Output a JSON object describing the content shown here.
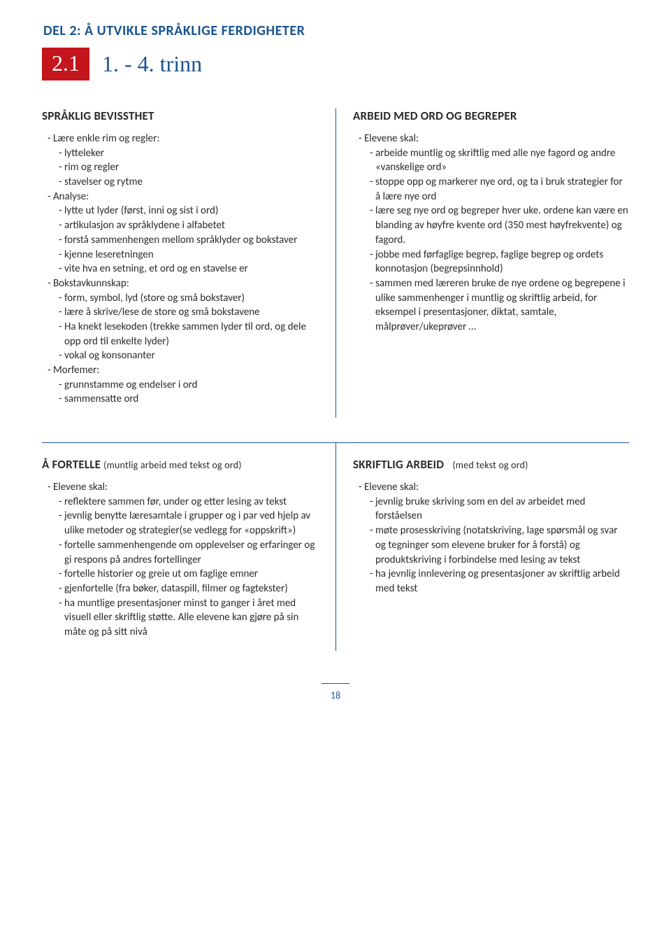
{
  "header": {
    "title": "DEL 2: Å UTVIKLE SPRÅKLIGE FERDIGHETER",
    "section_number": "2.1",
    "section_title": "1. - 4. trinn"
  },
  "blocks": {
    "spraklig": {
      "title": "SPRÅKLIG BEVISSTHET",
      "lines": [
        {
          "t": "- Lære enkle rim og regler:",
          "lvl": 1
        },
        {
          "t": "- lytteleker",
          "lvl": 2
        },
        {
          "t": "- rim og regler",
          "lvl": 2
        },
        {
          "t": "- stavelser og rytme",
          "lvl": 2
        },
        {
          "t": "- Analyse:",
          "lvl": 1
        },
        {
          "t": "- lytte ut lyder (først, inni og sist i ord)",
          "lvl": 2
        },
        {
          "t": "- artikulasjon av språklydene i alfabetet",
          "lvl": 2
        },
        {
          "t": "- forstå sammenhengen mellom språklyder og bokstaver",
          "lvl": 2
        },
        {
          "t": "- kjenne leseretningen",
          "lvl": 2
        },
        {
          "t": "- vite hva en setning, et ord og en stavelse er",
          "lvl": 2
        },
        {
          "t": "- Bokstavkunnskap:",
          "lvl": 1
        },
        {
          "t": "- form, symbol, lyd (store og små bokstaver)",
          "lvl": 2
        },
        {
          "t": "- lære å skrive/lese de store og små bokstavene",
          "lvl": 2
        },
        {
          "t": "- Ha knekt lesekoden (trekke sammen lyder til ord, og dele opp ord til enkelte lyder)",
          "lvl": 2
        },
        {
          "t": "- vokal og konsonanter",
          "lvl": 2
        },
        {
          "t": "- Morfemer:",
          "lvl": 1
        },
        {
          "t": "- grunnstamme og endelser i ord",
          "lvl": 2
        },
        {
          "t": "- sammensatte ord",
          "lvl": 2
        }
      ]
    },
    "arbeid": {
      "title": "ARBEID MED ORD OG BEGREPER",
      "lines": [
        {
          "t": "- Elevene skal:",
          "lvl": 1
        },
        {
          "t": "- arbeide muntlig og skriftlig med alle nye fagord og andre «vanskelige ord»",
          "lvl": 2
        },
        {
          "t": "- stoppe opp og markerer nye ord, og ta i bruk strategier for å lære nye ord",
          "lvl": 2
        },
        {
          "t": "- lære seg nye ord og begreper hver uke. ordene kan være en blanding av høyfre kvente ord (350 mest høyfrekvente) og fagord.",
          "lvl": 2
        },
        {
          "t": "- jobbe med førfaglige begrep, faglige begrep og ordets konnotasjon (begrepsinnhold)",
          "lvl": 2
        },
        {
          "t": "- sammen med læreren bruke de nye ordene og begrepene i ulike sammenhenger i muntlig og skriftlig arbeid, for eksempel i presentasjoner, diktat, samtale, målprøver/ukeprøver …",
          "lvl": 2
        }
      ]
    },
    "fortelle": {
      "title": "Å FORTELLE",
      "subtitle": "(muntlig arbeid med tekst og ord)",
      "lines": [
        {
          "t": "- Elevene skal:",
          "lvl": 1
        },
        {
          "t": "- reflektere sammen før, under og etter lesing av tekst",
          "lvl": 2
        },
        {
          "t": "- jevnlig benytte læresamtale i grupper og i par ved hjelp av ulike metoder og strategier(se vedlegg for «oppskrift»)",
          "lvl": 2
        },
        {
          "t": "- fortelle sammenhengende om opplevelser og erfaringer og gi respons på andres fortellinger",
          "lvl": 2
        },
        {
          "t": "- fortelle historier og greie ut om faglige emner",
          "lvl": 2
        },
        {
          "t": "- gjenfortelle (fra bøker, dataspill, filmer og fagtekster)",
          "lvl": 2
        },
        {
          "t": "- ha muntlige presentasjoner minst to ganger i året med visuell eller skriftlig støtte. Alle elevene kan gjøre på sin måte og på sitt nivå",
          "lvl": 2
        }
      ]
    },
    "skriftlig": {
      "title": "SKRIFTLIG ARBEID",
      "subtitle": "(med tekst og ord)",
      "lines": [
        {
          "t": "- Elevene skal:",
          "lvl": 1
        },
        {
          "t": "- jevnlig bruke skriving som en del av arbeidet med forståelsen",
          "lvl": 2
        },
        {
          "t": "- møte prosesskriving (notatskriving, lage spørsmål og svar og tegninger som elevene bruker for å forstå) og produktskriving i forbindelse med lesing av tekst",
          "lvl": 2
        },
        {
          "t": "- ha jevnlig innlevering og presentasjoner av skriftlig arbeid med tekst",
          "lvl": 2
        }
      ]
    }
  },
  "page_number": "18"
}
